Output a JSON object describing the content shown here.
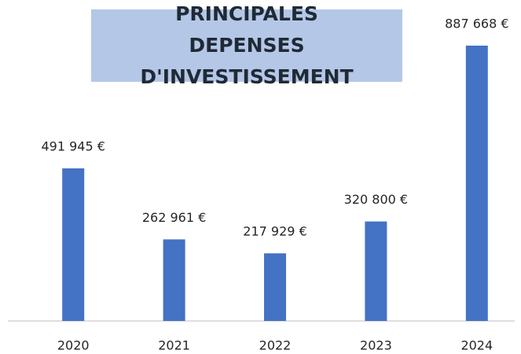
{
  "chart_data": {
    "type": "bar",
    "title": "PRINCIPALES DEPENSES D'INVESTISSEMENT",
    "categories": [
      "2020",
      "2021",
      "2022",
      "2023",
      "2024"
    ],
    "values": [
      491945,
      262961,
      217929,
      320800,
      887668
    ],
    "value_labels": [
      "491 945 €",
      "262 961 €",
      "217 929 €",
      "320 800 €",
      "887 668 €"
    ],
    "color": "#4472c4"
  }
}
